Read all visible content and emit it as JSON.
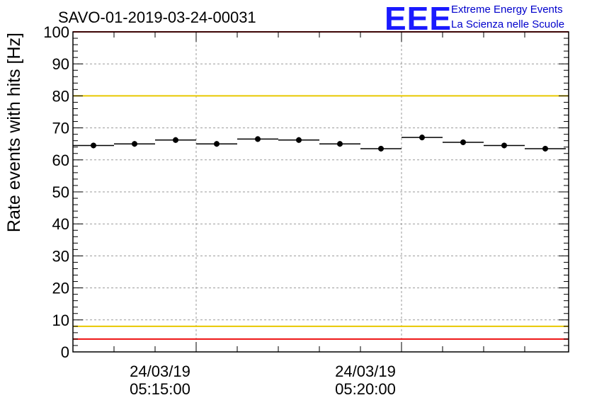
{
  "title": "SAVO-01-2019-03-24-00031",
  "logo": {
    "mark": "EEE",
    "line1": "Extreme Energy Events",
    "line2": "La Scienza nelle Scuole",
    "color": "#1a1aff"
  },
  "chart_data": {
    "type": "scatter",
    "ylabel": "Rate events with hits [Hz]",
    "xlabel": "",
    "ylim": [
      0,
      100
    ],
    "y_ticks": [
      0,
      10,
      20,
      30,
      40,
      50,
      60,
      70,
      80,
      90,
      100
    ],
    "x_tick_labels": [
      {
        "date": "24/03/19",
        "time": "05:15:00"
      },
      {
        "date": "24/03/19",
        "time": "05:20:00"
      }
    ],
    "grid": true,
    "series": [
      {
        "x": [
          "05:12:30",
          "05:13:30",
          "05:14:30",
          "05:15:30",
          "05:16:30",
          "05:17:30",
          "05:18:30",
          "05:19:30",
          "05:20:30",
          "05:21:30",
          "05:22:30",
          "05:23:30"
        ],
        "values": [
          64.5,
          65.0,
          66.2,
          65.0,
          66.5,
          66.2,
          65.0,
          63.5,
          67.0,
          65.5,
          64.5,
          63.5
        ]
      }
    ],
    "reference_lines": [
      {
        "y": 80,
        "color": "#e8c800"
      },
      {
        "y": 8,
        "color": "#e8c800"
      },
      {
        "y": 100,
        "color": "#ee1111"
      },
      {
        "y": 4,
        "color": "#ee1111"
      }
    ]
  }
}
